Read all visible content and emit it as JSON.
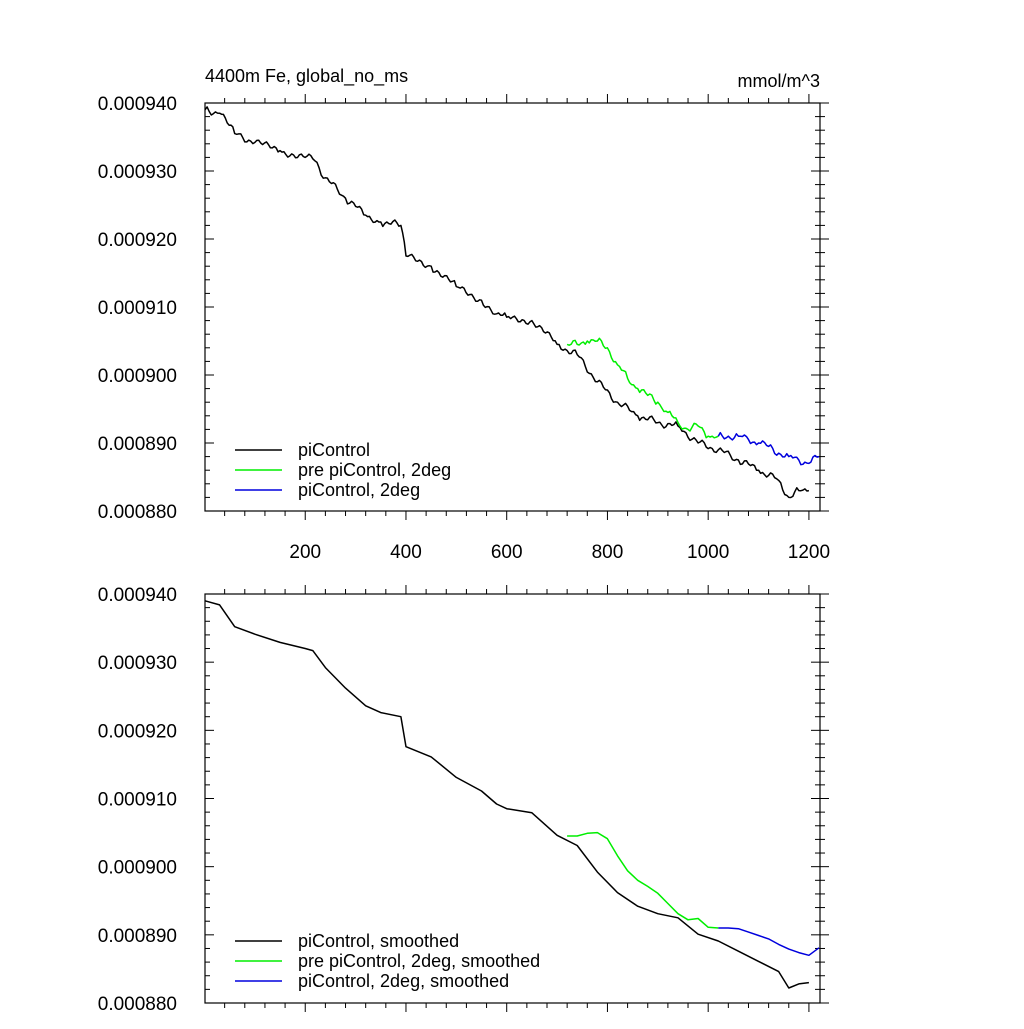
{
  "chart_data": [
    {
      "type": "line",
      "title": "4400m Fe, global_no_ms",
      "units": "mmol/m^3",
      "xlabel": "",
      "ylabel": "",
      "xlim": [
        1,
        1222
      ],
      "ylim": [
        0.00088,
        0.00094
      ],
      "x_ticks": [
        "200",
        "400",
        "600",
        "800",
        "1000",
        "1200"
      ],
      "y_ticks": [
        "0.000940",
        "0.000930",
        "0.000920",
        "0.000910",
        "0.000900",
        "0.000890",
        "0.000880"
      ],
      "legend_position": "bottom-left",
      "series": [
        {
          "name": "piControl",
          "color": "#000000",
          "x": [
            1,
            30,
            60,
            100,
            150,
            200,
            215,
            240,
            280,
            320,
            350,
            390,
            400,
            450,
            500,
            550,
            580,
            600,
            650,
            700,
            740,
            780,
            820,
            860,
            900,
            940,
            980,
            1020,
            1060,
            1100,
            1140,
            1160,
            1180,
            1200
          ],
          "y": [
            0.000939,
            0.0009385,
            0.0009355,
            0.0009342,
            0.000933,
            0.000932,
            0.0009318,
            0.000929,
            0.000926,
            0.0009235,
            0.0009225,
            0.000922,
            0.0009175,
            0.000916,
            0.000913,
            0.000911,
            0.000909,
            0.0009085,
            0.000908,
            0.0009045,
            0.000903,
            0.000899,
            0.000896,
            0.000894,
            0.000893,
            0.0008925,
            0.00089,
            0.000889,
            0.0008875,
            0.000886,
            0.0008845,
            0.000882,
            0.000883,
            0.000883
          ]
        },
        {
          "name": "pre piControl, 2deg",
          "color": "#00ee00",
          "x": [
            720,
            740,
            760,
            780,
            800,
            820,
            840,
            860,
            880,
            900,
            920,
            940,
            960,
            980,
            1000,
            1020
          ],
          "y": [
            0.0009045,
            0.0009045,
            0.000905,
            0.000905,
            0.000904,
            0.0009015,
            0.0008995,
            0.000898,
            0.000897,
            0.000896,
            0.0008945,
            0.000893,
            0.000892,
            0.0008925,
            0.000891,
            0.000891
          ]
        },
        {
          "name": "piControl, 2deg",
          "color": "#0000dd",
          "x": [
            1020,
            1040,
            1060,
            1080,
            1100,
            1120,
            1140,
            1160,
            1180,
            1200,
            1220
          ],
          "y": [
            0.000891,
            0.000891,
            0.000891,
            0.0008905,
            0.00089,
            0.0008895,
            0.0008885,
            0.000888,
            0.0008875,
            0.000887,
            0.000888
          ]
        }
      ]
    },
    {
      "type": "line",
      "title": "",
      "units": "",
      "xlabel": "",
      "ylabel": "",
      "xlim": [
        1,
        1222
      ],
      "ylim": [
        0.00088,
        0.00094
      ],
      "x_ticks": [],
      "y_ticks": [
        "0.000940",
        "0.000930",
        "0.000920",
        "0.000910",
        "0.000900",
        "0.000890",
        "0.000880"
      ],
      "legend_position": "bottom-left",
      "series": [
        {
          "name": "piControl, smoothed",
          "color": "#000000",
          "x": [
            1,
            30,
            60,
            100,
            150,
            200,
            215,
            240,
            280,
            320,
            350,
            390,
            400,
            450,
            500,
            550,
            580,
            600,
            650,
            700,
            740,
            780,
            820,
            860,
            900,
            940,
            980,
            1020,
            1060,
            1100,
            1140,
            1160,
            1180,
            1200
          ],
          "y": [
            0.000939,
            0.0009384,
            0.0009352,
            0.0009341,
            0.0009329,
            0.000932,
            0.0009317,
            0.0009292,
            0.0009262,
            0.0009236,
            0.0009226,
            0.000922,
            0.0009176,
            0.0009161,
            0.0009131,
            0.0009111,
            0.0009092,
            0.0009085,
            0.0009079,
            0.0009046,
            0.0009031,
            0.0008992,
            0.0008962,
            0.0008942,
            0.0008931,
            0.0008925,
            0.0008901,
            0.0008891,
            0.0008876,
            0.0008861,
            0.0008846,
            0.0008822,
            0.0008828,
            0.000883
          ]
        },
        {
          "name": "pre piControl, 2deg, smoothed",
          "color": "#00ee00",
          "x": [
            720,
            740,
            760,
            780,
            800,
            820,
            840,
            860,
            880,
            900,
            920,
            940,
            960,
            980,
            1000,
            1020
          ],
          "y": [
            0.0009045,
            0.0009045,
            0.0009049,
            0.000905,
            0.0009041,
            0.0009016,
            0.0008994,
            0.000898,
            0.0008971,
            0.0008961,
            0.0008946,
            0.0008931,
            0.0008922,
            0.0008924,
            0.0008911,
            0.000891
          ]
        },
        {
          "name": "piControl, 2deg, smoothed",
          "color": "#0000dd",
          "x": [
            1020,
            1040,
            1060,
            1080,
            1100,
            1120,
            1140,
            1160,
            1180,
            1200,
            1220
          ],
          "y": [
            0.000891,
            0.000891,
            0.0008909,
            0.0008904,
            0.0008899,
            0.0008894,
            0.0008886,
            0.0008879,
            0.0008874,
            0.000887,
            0.0008881
          ]
        }
      ]
    }
  ]
}
